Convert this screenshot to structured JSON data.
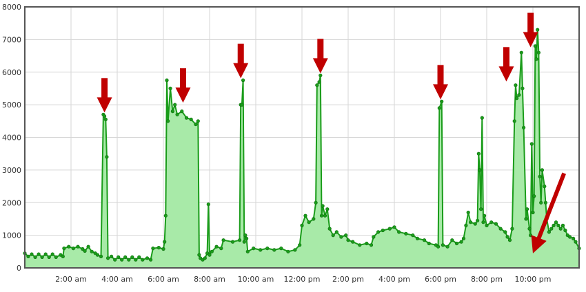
{
  "colors": {
    "line": "#1a9c1a",
    "fill": "#a8eaa8",
    "marker": "#0d6b0d",
    "arrow": "#c00000",
    "grid": "#d6d6d6",
    "frame": "#555555"
  },
  "chart_data": {
    "type": "area",
    "title": "",
    "xlabel": "",
    "ylabel": "",
    "x_range_hours": [
      0,
      24
    ],
    "ylim": [
      0,
      8000
    ],
    "grid": true,
    "legend": "none",
    "x_ticks": [
      {
        "hour": 2,
        "label": "2:00 am"
      },
      {
        "hour": 4,
        "label": "4:00 am"
      },
      {
        "hour": 6,
        "label": "6:00 am"
      },
      {
        "hour": 8,
        "label": "8:00 am"
      },
      {
        "hour": 10,
        "label": "10:00 am"
      },
      {
        "hour": 12,
        "label": "12:00 pm"
      },
      {
        "hour": 14,
        "label": "2:00 pm"
      },
      {
        "hour": 16,
        "label": "4:00 pm"
      },
      {
        "hour": 18,
        "label": "6:00 pm"
      },
      {
        "hour": 20,
        "label": "8:00 pm"
      },
      {
        "hour": 22,
        "label": "10:00 pm"
      }
    ],
    "y_ticks": [
      {
        "value": 0,
        "label": "0"
      },
      {
        "value": 1000,
        "label": "1000"
      },
      {
        "value": 2000,
        "label": "2000"
      },
      {
        "value": 3000,
        "label": "3000"
      },
      {
        "value": 4000,
        "label": "4000"
      },
      {
        "value": 5000,
        "label": "5000"
      },
      {
        "value": 6000,
        "label": "6000"
      },
      {
        "value": 7000,
        "label": "7000"
      },
      {
        "value": 8000,
        "label": "8000"
      }
    ],
    "series": [
      {
        "points": [
          [
            0.0,
            450
          ],
          [
            0.15,
            350
          ],
          [
            0.3,
            420
          ],
          [
            0.45,
            330
          ],
          [
            0.6,
            420
          ],
          [
            0.75,
            330
          ],
          [
            0.9,
            420
          ],
          [
            1.05,
            330
          ],
          [
            1.2,
            420
          ],
          [
            1.35,
            330
          ],
          [
            1.55,
            400
          ],
          [
            1.65,
            350
          ],
          [
            1.7,
            600
          ],
          [
            1.9,
            650
          ],
          [
            2.1,
            600
          ],
          [
            2.3,
            650
          ],
          [
            2.5,
            580
          ],
          [
            2.6,
            520
          ],
          [
            2.75,
            650
          ],
          [
            2.9,
            500
          ],
          [
            3.05,
            450
          ],
          [
            3.15,
            400
          ],
          [
            3.3,
            350
          ],
          [
            3.4,
            4700
          ],
          [
            3.45,
            4650
          ],
          [
            3.5,
            4550
          ],
          [
            3.55,
            3400
          ],
          [
            3.6,
            300
          ],
          [
            3.75,
            350
          ],
          [
            3.9,
            250
          ],
          [
            4.05,
            330
          ],
          [
            4.2,
            250
          ],
          [
            4.35,
            330
          ],
          [
            4.5,
            250
          ],
          [
            4.65,
            330
          ],
          [
            4.8,
            250
          ],
          [
            4.95,
            330
          ],
          [
            5.1,
            250
          ],
          [
            5.3,
            300
          ],
          [
            5.45,
            250
          ],
          [
            5.55,
            600
          ],
          [
            5.8,
            620
          ],
          [
            6.0,
            580
          ],
          [
            6.05,
            800
          ],
          [
            6.1,
            1600
          ],
          [
            6.15,
            5750
          ],
          [
            6.2,
            4500
          ],
          [
            6.3,
            5500
          ],
          [
            6.4,
            4800
          ],
          [
            6.5,
            5000
          ],
          [
            6.6,
            4700
          ],
          [
            6.8,
            4800
          ],
          [
            7.0,
            4600
          ],
          [
            7.2,
            4550
          ],
          [
            7.4,
            4400
          ],
          [
            7.5,
            4500
          ],
          [
            7.55,
            400
          ],
          [
            7.6,
            300
          ],
          [
            7.7,
            250
          ],
          [
            7.8,
            300
          ],
          [
            7.9,
            450
          ],
          [
            7.95,
            1950
          ],
          [
            8.0,
            400
          ],
          [
            8.1,
            500
          ],
          [
            8.3,
            650
          ],
          [
            8.5,
            600
          ],
          [
            8.6,
            850
          ],
          [
            9.0,
            800
          ],
          [
            9.3,
            850
          ],
          [
            9.35,
            5000
          ],
          [
            9.4,
            5000
          ],
          [
            9.45,
            5750
          ],
          [
            9.5,
            800
          ],
          [
            9.55,
            1000
          ],
          [
            9.6,
            900
          ],
          [
            9.65,
            500
          ],
          [
            9.9,
            600
          ],
          [
            10.2,
            550
          ],
          [
            10.5,
            600
          ],
          [
            10.8,
            550
          ],
          [
            11.1,
            600
          ],
          [
            11.4,
            500
          ],
          [
            11.7,
            550
          ],
          [
            11.9,
            700
          ],
          [
            12.0,
            1300
          ],
          [
            12.15,
            1600
          ],
          [
            12.3,
            1400
          ],
          [
            12.5,
            1500
          ],
          [
            12.6,
            2000
          ],
          [
            12.65,
            5600
          ],
          [
            12.75,
            5700
          ],
          [
            12.8,
            5900
          ],
          [
            12.85,
            1600
          ],
          [
            12.9,
            1900
          ],
          [
            13.0,
            1600
          ],
          [
            13.1,
            1800
          ],
          [
            13.2,
            1200
          ],
          [
            13.35,
            1000
          ],
          [
            13.5,
            1100
          ],
          [
            13.7,
            950
          ],
          [
            13.9,
            1000
          ],
          [
            14.0,
            850
          ],
          [
            14.2,
            800
          ],
          [
            14.5,
            700
          ],
          [
            14.8,
            750
          ],
          [
            15.0,
            700
          ],
          [
            15.1,
            950
          ],
          [
            15.3,
            1100
          ],
          [
            15.5,
            1150
          ],
          [
            15.8,
            1200
          ],
          [
            16.0,
            1250
          ],
          [
            16.2,
            1100
          ],
          [
            16.5,
            1050
          ],
          [
            16.8,
            1000
          ],
          [
            17.0,
            900
          ],
          [
            17.3,
            850
          ],
          [
            17.5,
            750
          ],
          [
            17.8,
            700
          ],
          [
            17.9,
            650
          ],
          [
            17.95,
            4900
          ],
          [
            18.05,
            5100
          ],
          [
            18.1,
            700
          ],
          [
            18.3,
            650
          ],
          [
            18.5,
            850
          ],
          [
            18.7,
            750
          ],
          [
            18.9,
            800
          ],
          [
            19.0,
            900
          ],
          [
            19.1,
            1300
          ],
          [
            19.2,
            1700
          ],
          [
            19.3,
            1400
          ],
          [
            19.5,
            1350
          ],
          [
            19.6,
            1450
          ],
          [
            19.65,
            3500
          ],
          [
            19.7,
            3000
          ],
          [
            19.75,
            1800
          ],
          [
            19.8,
            4600
          ],
          [
            19.85,
            1400
          ],
          [
            19.9,
            1600
          ],
          [
            20.0,
            1300
          ],
          [
            20.2,
            1400
          ],
          [
            20.4,
            1350
          ],
          [
            20.6,
            1200
          ],
          [
            20.8,
            1100
          ],
          [
            20.9,
            950
          ],
          [
            21.0,
            850
          ],
          [
            21.1,
            1200
          ],
          [
            21.2,
            4500
          ],
          [
            21.25,
            5600
          ],
          [
            21.3,
            5200
          ],
          [
            21.4,
            5300
          ],
          [
            21.5,
            6600
          ],
          [
            21.55,
            5500
          ],
          [
            21.6,
            4300
          ],
          [
            21.7,
            1500
          ],
          [
            21.75,
            1800
          ],
          [
            21.85,
            1200
          ],
          [
            21.9,
            1000
          ],
          [
            21.95,
            3800
          ],
          [
            22.0,
            1700
          ],
          [
            22.05,
            2200
          ],
          [
            22.1,
            6800
          ],
          [
            22.15,
            6400
          ],
          [
            22.2,
            7300
          ],
          [
            22.25,
            6600
          ],
          [
            22.3,
            2800
          ],
          [
            22.35,
            2000
          ],
          [
            22.4,
            3000
          ],
          [
            22.5,
            2500
          ],
          [
            22.55,
            2000
          ],
          [
            22.6,
            1500
          ],
          [
            22.7,
            1100
          ],
          [
            22.8,
            1200
          ],
          [
            22.9,
            1300
          ],
          [
            23.0,
            1400
          ],
          [
            23.1,
            1300
          ],
          [
            23.2,
            1200
          ],
          [
            23.3,
            1300
          ],
          [
            23.4,
            1150
          ],
          [
            23.5,
            1000
          ],
          [
            23.6,
            950
          ],
          [
            23.75,
            900
          ],
          [
            23.85,
            800
          ],
          [
            24.0,
            600
          ]
        ]
      }
    ],
    "annotations": [
      {
        "type": "arrow",
        "direction": "down",
        "target_hour": 3.45,
        "target_value": 4700
      },
      {
        "type": "arrow",
        "direction": "down",
        "target_hour": 6.85,
        "target_value": 5000
      },
      {
        "type": "arrow",
        "direction": "down",
        "target_hour": 9.35,
        "target_value": 5750
      },
      {
        "type": "arrow",
        "direction": "down",
        "target_hour": 12.8,
        "target_value": 5900
      },
      {
        "type": "arrow",
        "direction": "down",
        "target_hour": 18.0,
        "target_value": 5100
      },
      {
        "type": "arrow",
        "direction": "down",
        "target_hour": 20.85,
        "target_value": 5650
      },
      {
        "type": "arrow",
        "direction": "down",
        "target_hour": 21.9,
        "target_value": 6700
      },
      {
        "type": "arrow",
        "direction": "down-left",
        "target_hour": 21.95,
        "target_value": 450,
        "from_hour": 23.35,
        "from_value": 2900
      }
    ]
  }
}
